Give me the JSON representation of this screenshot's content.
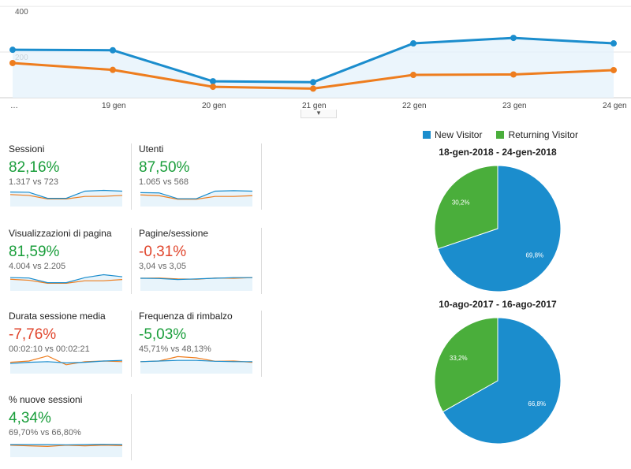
{
  "chart_data": [
    {
      "type": "line",
      "x": [
        "…",
        "19 gen",
        "20 gen",
        "21 gen",
        "22 gen",
        "23 gen",
        "24 gen"
      ],
      "ylim": [
        0,
        400
      ],
      "yticks": [
        "400",
        "200"
      ],
      "grid": true,
      "series": [
        {
          "values": [
            210,
            208,
            72,
            68,
            238,
            262,
            238
          ],
          "color": "#1b8dcd"
        },
        {
          "values": [
            152,
            122,
            48,
            40,
            100,
            102,
            121
          ],
          "color": "#ee7d1e"
        }
      ]
    },
    {
      "type": "pie",
      "title": "18-gen-2018 - 24-gen-2018",
      "legend": [
        "New Visitor",
        "Returning Visitor"
      ],
      "colors": [
        "#1b8dcd",
        "#4aae3b"
      ],
      "values": [
        69.8,
        30.2
      ],
      "labels": [
        "69,8%",
        "30,2%"
      ]
    },
    {
      "type": "pie",
      "title": "10-ago-2017 - 16-ago-2017",
      "legend": [
        "New Visitor",
        "Returning Visitor"
      ],
      "colors": [
        "#1b8dcd",
        "#4aae3b"
      ],
      "values": [
        66.8,
        33.2
      ],
      "labels": [
        "66,8%",
        "33,2%"
      ]
    }
  ],
  "metrics": [
    {
      "name": "Sessioni",
      "value": "82,16%",
      "compare": "1.317 vs 723",
      "trend": "pos",
      "spark_blue": [
        0.65,
        0.63,
        0.15,
        0.15,
        0.72,
        0.78,
        0.72
      ],
      "spark_orange": [
        0.45,
        0.38,
        0.1,
        0.1,
        0.3,
        0.31,
        0.38
      ]
    },
    {
      "name": "Utenti",
      "value": "87,50%",
      "compare": "1.065 vs 568",
      "trend": "pos",
      "spark_blue": [
        0.6,
        0.58,
        0.12,
        0.12,
        0.72,
        0.76,
        0.72
      ],
      "spark_orange": [
        0.42,
        0.36,
        0.08,
        0.08,
        0.3,
        0.3,
        0.36
      ]
    },
    {
      "name": "Visualizzazioni di pagina",
      "value": "81,59%",
      "compare": "4.004 vs 2.205",
      "trend": "pos",
      "spark_blue": [
        0.55,
        0.52,
        0.15,
        0.15,
        0.55,
        0.78,
        0.62
      ],
      "spark_orange": [
        0.42,
        0.34,
        0.1,
        0.1,
        0.3,
        0.3,
        0.4
      ]
    },
    {
      "name": "Pagine/sessione",
      "value": "-0,31%",
      "compare": "3,04 vs 3,05",
      "trend": "neg",
      "spark_blue": [
        0.5,
        0.48,
        0.4,
        0.45,
        0.5,
        0.55,
        0.55
      ],
      "spark_orange": [
        0.5,
        0.52,
        0.45,
        0.42,
        0.52,
        0.5,
        0.55
      ]
    },
    {
      "name": "Durata sessione media",
      "value": "-7,76%",
      "compare": "00:02:10 vs 00:02:21",
      "trend": "neg",
      "spark_blue": [
        0.3,
        0.4,
        0.45,
        0.35,
        0.4,
        0.5,
        0.55
      ],
      "spark_orange": [
        0.4,
        0.5,
        0.9,
        0.2,
        0.45,
        0.5,
        0.45
      ]
    },
    {
      "name": "Frequenza di rimbalzo",
      "value": "-5,03%",
      "compare": "45,71% vs 48,13%",
      "trend": "pos",
      "spark_blue": [
        0.45,
        0.5,
        0.55,
        0.55,
        0.48,
        0.45,
        0.45
      ],
      "spark_orange": [
        0.45,
        0.5,
        0.85,
        0.75,
        0.48,
        0.5,
        0.4
      ]
    },
    {
      "name": "% nuove sessioni",
      "value": "4,34%",
      "compare": "69,70% vs 66,80%",
      "trend": "pos",
      "spark_blue": [
        0.5,
        0.5,
        0.5,
        0.48,
        0.5,
        0.52,
        0.5
      ],
      "spark_orange": [
        0.45,
        0.4,
        0.35,
        0.45,
        0.4,
        0.45,
        0.42
      ]
    }
  ]
}
